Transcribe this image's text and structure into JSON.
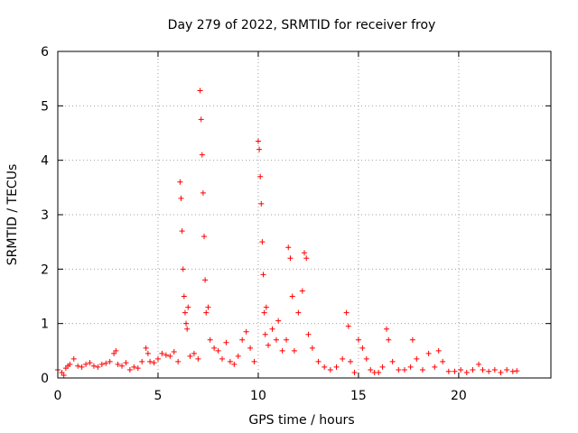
{
  "chart_data": {
    "type": "scatter",
    "title": "Day 279 of 2022, SRMTID for receiver froy",
    "xlabel": "GPS time / hours",
    "ylabel": "SRMTID / TECUs",
    "xlim": [
      0,
      24.6
    ],
    "ylim": [
      0,
      6
    ],
    "xticks": [
      0,
      5,
      10,
      15,
      20
    ],
    "yticks": [
      0,
      1,
      2,
      3,
      4,
      5,
      6
    ],
    "grid": true,
    "marker": "+",
    "color": "#ff0000",
    "series": [
      {
        "name": "SRMTID",
        "x": [
          0.0,
          0.2,
          0.3,
          0.4,
          0.5,
          0.6,
          0.8,
          1.0,
          1.2,
          1.4,
          1.6,
          1.8,
          2.0,
          2.2,
          2.4,
          2.6,
          2.8,
          2.9,
          3.0,
          3.2,
          3.4,
          3.6,
          3.8,
          4.0,
          4.2,
          4.4,
          4.5,
          4.6,
          4.8,
          5.0,
          5.2,
          5.4,
          5.6,
          5.8,
          6.0,
          6.1,
          6.15,
          6.2,
          6.25,
          6.3,
          6.35,
          6.4,
          6.45,
          6.5,
          6.6,
          6.8,
          7.0,
          7.1,
          7.15,
          7.2,
          7.25,
          7.3,
          7.35,
          7.4,
          7.5,
          7.6,
          7.8,
          8.0,
          8.2,
          8.4,
          8.6,
          8.8,
          9.0,
          9.2,
          9.4,
          9.6,
          9.8,
          10.0,
          10.05,
          10.1,
          10.15,
          10.2,
          10.25,
          10.3,
          10.35,
          10.4,
          10.5,
          10.7,
          10.9,
          11.0,
          11.2,
          11.4,
          11.5,
          11.6,
          11.7,
          11.8,
          12.0,
          12.2,
          12.3,
          12.4,
          12.5,
          12.7,
          13.0,
          13.3,
          13.6,
          13.9,
          14.2,
          14.4,
          14.5,
          14.6,
          14.8,
          15.0,
          15.2,
          15.4,
          15.6,
          15.8,
          16.0,
          16.2,
          16.4,
          16.5,
          16.7,
          17.0,
          17.3,
          17.6,
          17.7,
          17.9,
          18.2,
          18.5,
          18.8,
          19.0,
          19.2,
          19.5,
          19.8,
          20.1,
          20.4,
          20.7,
          21.0,
          21.2,
          21.5,
          21.8,
          22.1,
          22.4,
          22.7,
          22.9
        ],
        "y": [
          0.15,
          0.1,
          0.05,
          0.18,
          0.22,
          0.25,
          0.35,
          0.22,
          0.2,
          0.25,
          0.28,
          0.22,
          0.2,
          0.25,
          0.27,
          0.3,
          0.45,
          0.5,
          0.25,
          0.22,
          0.28,
          0.15,
          0.2,
          0.18,
          0.3,
          0.55,
          0.45,
          0.3,
          0.28,
          0.35,
          0.45,
          0.42,
          0.4,
          0.48,
          0.3,
          3.6,
          3.3,
          2.7,
          2.0,
          1.5,
          1.2,
          1.0,
          0.9,
          1.3,
          0.4,
          0.45,
          0.35,
          5.28,
          4.75,
          4.1,
          3.4,
          2.6,
          1.8,
          1.2,
          1.3,
          0.7,
          0.55,
          0.5,
          0.35,
          0.65,
          0.3,
          0.25,
          0.4,
          0.7,
          0.85,
          0.55,
          0.3,
          4.35,
          4.2,
          3.7,
          3.2,
          2.5,
          1.9,
          1.2,
          0.8,
          1.3,
          0.6,
          0.9,
          0.7,
          1.05,
          0.5,
          0.7,
          2.4,
          2.2,
          1.5,
          0.5,
          1.2,
          1.6,
          2.3,
          2.2,
          0.8,
          0.55,
          0.3,
          0.2,
          0.15,
          0.2,
          0.35,
          1.2,
          0.95,
          0.3,
          0.1,
          0.7,
          0.55,
          0.35,
          0.15,
          0.1,
          0.1,
          0.2,
          0.9,
          0.7,
          0.3,
          0.15,
          0.15,
          0.2,
          0.7,
          0.35,
          0.15,
          0.45,
          0.2,
          0.5,
          0.3,
          0.12,
          0.12,
          0.15,
          0.1,
          0.15,
          0.25,
          0.15,
          0.12,
          0.15,
          0.1,
          0.15,
          0.12,
          0.13
        ]
      }
    ]
  }
}
